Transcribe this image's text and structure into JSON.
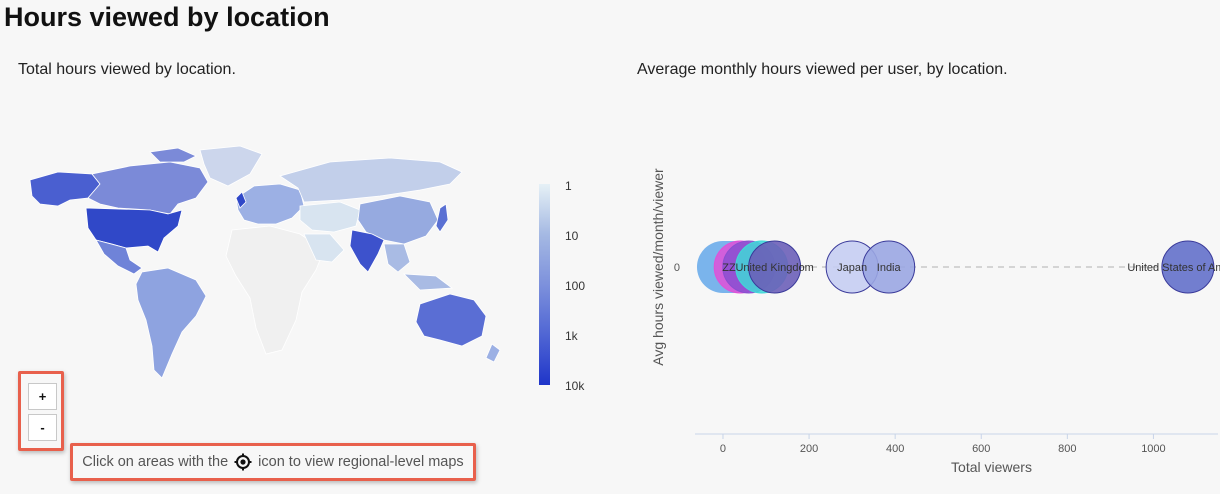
{
  "page": {
    "title": "Hours viewed by location"
  },
  "map_panel": {
    "subtitle": "Total hours viewed by location.",
    "legend": {
      "ticks": [
        "1",
        "10",
        "100",
        "1k",
        "10k"
      ],
      "colors": [
        "#e6f1f6",
        "#a5b9e3",
        "#7d91dc",
        "#5066d4",
        "#1f35c9"
      ]
    },
    "zoom": {
      "in_label": "+",
      "out_label": "-"
    },
    "hint": {
      "before": "Click on areas with the",
      "icon": "locate-target-icon",
      "after": "icon to view regional-level maps"
    },
    "region_colors": {
      "usa": "#3048c8",
      "canada": "#7b8ad8",
      "alaska": "#4a5fd0",
      "greenland": "#ccd6ec",
      "mexico": "#6f83d8",
      "south_america": "#8ea3e0",
      "europe": "#9cb0e4",
      "russia": "#c2cfea",
      "india": "#3d52cc",
      "china": "#96aae0",
      "japan": "#5a70d3",
      "australia": "#5a6ed4",
      "africa_light": "#f0f0f0",
      "middle_east": "#d8e4f0",
      "se_asia": "#a9bbe4"
    }
  },
  "bubble_panel": {
    "subtitle": "Average monthly hours viewed per user, by location."
  },
  "chart_data": {
    "type": "scatter",
    "title": "",
    "xlabel": "Total viewers",
    "ylabel": "Avg hours viewed/month/viewer",
    "xlim": [
      -65,
      1150
    ],
    "x_ticks": [
      0,
      200,
      400,
      600,
      800,
      1000
    ],
    "y_ticks": [
      0
    ],
    "points": [
      {
        "label": "ZZ",
        "x": 0,
        "y": 0,
        "color": "#5aa2e8",
        "fill_opacity": 0.8,
        "size": "large"
      },
      {
        "label": "",
        "x": 40,
        "y": 0,
        "color": "#e050d8",
        "fill_opacity": 0.85,
        "size": "large"
      },
      {
        "label": "",
        "x": 60,
        "y": 0,
        "color": "#8a4fd0",
        "fill_opacity": 0.85,
        "size": "large"
      },
      {
        "label": "",
        "x": 90,
        "y": 0,
        "color": "#40d8d8",
        "fill_opacity": 0.85,
        "size": "large"
      },
      {
        "label": "United Kingdom",
        "x": 120,
        "y": 0,
        "color": "#6c5fb8",
        "fill_opacity": 0.9,
        "size": "large"
      },
      {
        "label": "Japan",
        "x": 300,
        "y": 0,
        "color": "#c5cdf2",
        "fill_opacity": 0.9,
        "size": "large"
      },
      {
        "label": "India",
        "x": 385,
        "y": 0,
        "color": "#9aa6e2",
        "fill_opacity": 0.9,
        "size": "large"
      },
      {
        "label": "United States of America",
        "x": 1080,
        "y": 0,
        "color": "#5a68c8",
        "fill_opacity": 0.85,
        "size": "large"
      }
    ],
    "connector": "dashed",
    "grid": false,
    "legend": "none"
  }
}
